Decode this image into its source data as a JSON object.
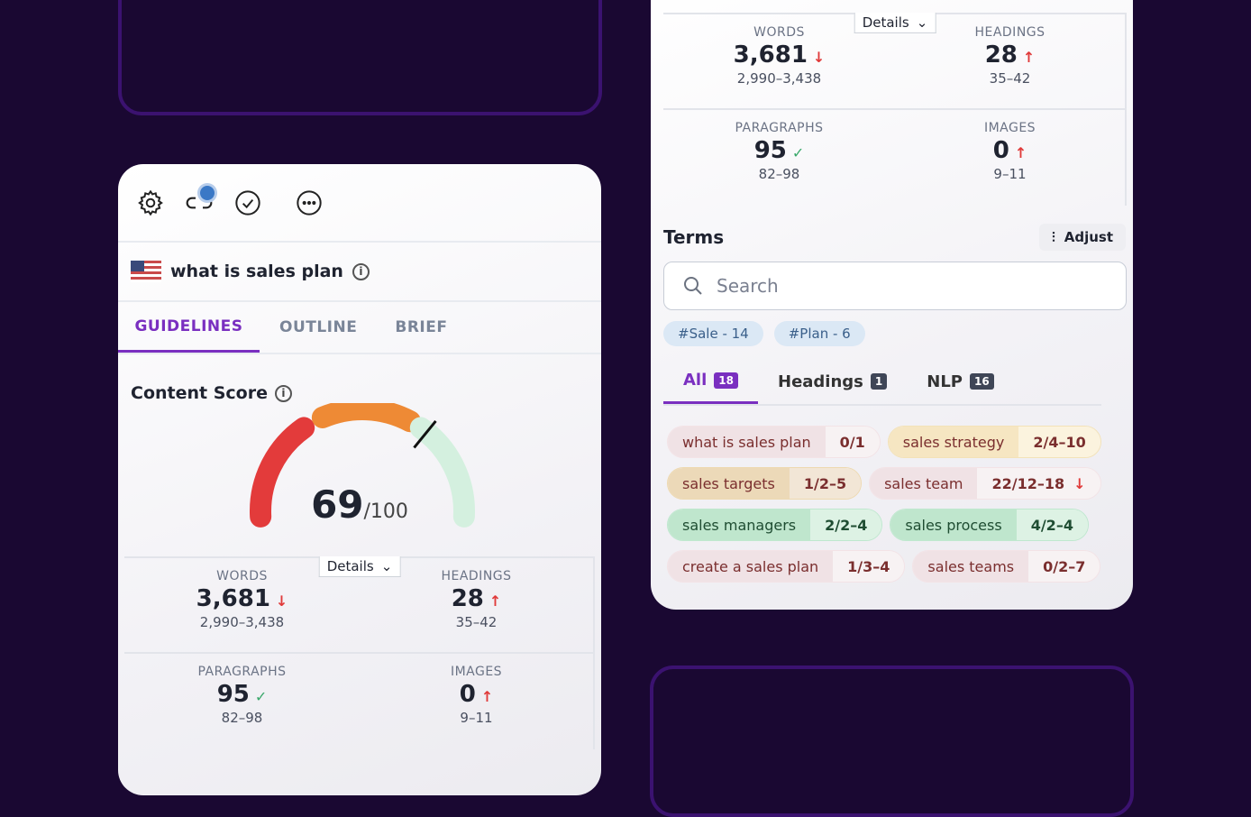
{
  "left": {
    "keyword": "what is sales plan",
    "tabs": [
      "GUIDELINES",
      "OUTLINE",
      "BRIEF"
    ],
    "content_score_label": "Content Score",
    "score": "69",
    "score_max": "/100",
    "score_value": 69,
    "details_label": "Details"
  },
  "stats": [
    {
      "label": "WORDS",
      "value": "3,681",
      "trend": "↓",
      "range": "2,990–3,438"
    },
    {
      "label": "HEADINGS",
      "value": "28",
      "trend": "↑",
      "range": "35–42"
    },
    {
      "label": "PARAGRAPHS",
      "value": "95",
      "trend": "✓",
      "range": "82–98"
    },
    {
      "label": "IMAGES",
      "value": "0",
      "trend": "↑",
      "range": "9–11"
    }
  ],
  "right": {
    "details_label": "Details",
    "terms_title": "Terms",
    "adjust_label": "Adjust",
    "search_placeholder": "Search",
    "tags": [
      "#Sale - 14",
      "#Plan - 6"
    ],
    "term_tabs": [
      {
        "label": "All",
        "count": "18"
      },
      {
        "label": "Headings",
        "count": "1"
      },
      {
        "label": "NLP",
        "count": "16"
      }
    ],
    "terms": [
      {
        "name": "what is sales plan",
        "value": "0/1",
        "status": "red"
      },
      {
        "name": "sales strategy",
        "value": "2/4–10",
        "status": "amber"
      },
      {
        "name": "sales targets",
        "value": "1/2–5",
        "status": "tan"
      },
      {
        "name": "sales team",
        "value": "22/12–18",
        "status": "red",
        "trend": "↓"
      },
      {
        "name": "sales managers",
        "value": "2/2–4",
        "status": "green"
      },
      {
        "name": "sales process",
        "value": "4/2–4",
        "status": "green"
      },
      {
        "name": "create a sales plan",
        "value": "1/3–4",
        "status": "red"
      },
      {
        "name": "sales teams",
        "value": "0/2–7",
        "status": "red"
      }
    ]
  },
  "colors": {
    "accent": "#7a2fc0",
    "background": "#1a0832",
    "gauge_red": "#e33b3b",
    "gauge_orange": "#ee8a35",
    "gauge_green": "#d4f0df"
  }
}
